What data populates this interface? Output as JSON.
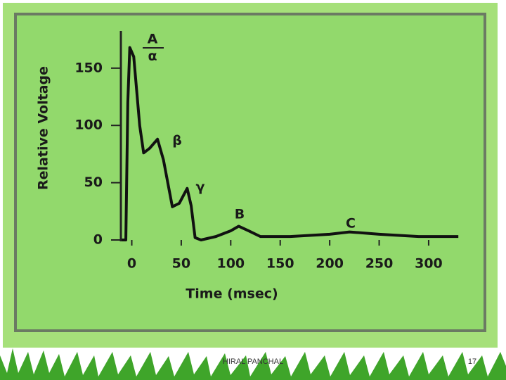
{
  "chart_data": {
    "type": "line",
    "ylabel": "Relative Voltage",
    "xlabel": "Time (msec)",
    "x": [
      -10,
      -6,
      -4,
      -2,
      2,
      8,
      12,
      18,
      26,
      32,
      41,
      48,
      56,
      60,
      64,
      70,
      85,
      100,
      108,
      118,
      130,
      160,
      200,
      220,
      250,
      290,
      330
    ],
    "series": [
      {
        "color": "#111111",
        "values": [
          0,
          0,
          120,
          168,
          160,
          100,
          76,
          80,
          88,
          70,
          29,
          32,
          45,
          30,
          2,
          0,
          3,
          8,
          12,
          8,
          3,
          3,
          5,
          7,
          5,
          3,
          3
        ]
      }
    ],
    "xlim": [
      -11,
      332
    ],
    "ylim": [
      0,
      180
    ],
    "xticks": [
      0,
      50,
      100,
      150,
      200,
      250,
      300
    ],
    "yticks": [
      0,
      50,
      100,
      150
    ],
    "annotations": [
      "A",
      "α",
      "β",
      "γ",
      "B",
      "C"
    ]
  },
  "footer": {
    "author": "HIRAL PANCHAL",
    "page": "17"
  }
}
